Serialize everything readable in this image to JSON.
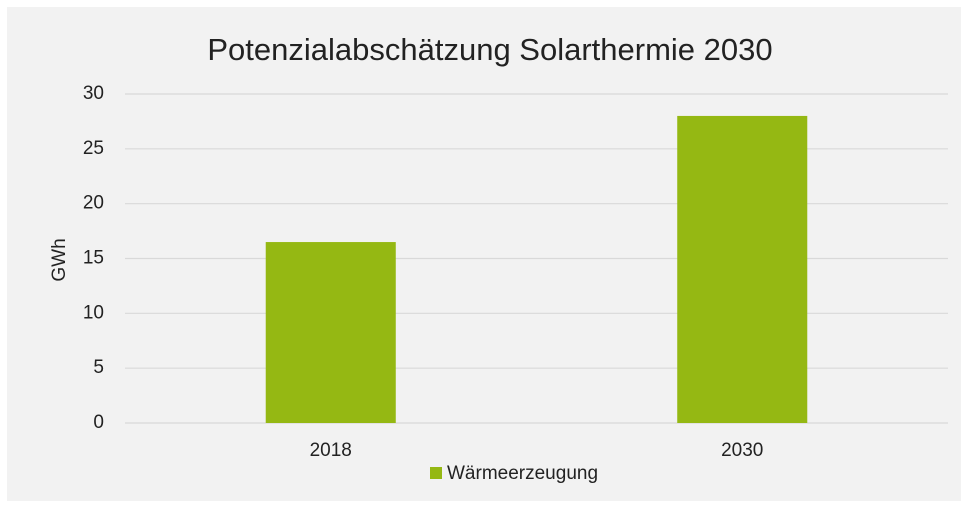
{
  "chart_data": {
    "type": "bar",
    "title": "Potenzialabschätzung Solarthermie 2030",
    "y_label": "GWh",
    "categories": [
      "2018",
      "2030"
    ],
    "series": [
      {
        "name": "Wärmeerzeugung",
        "color": "#95b813",
        "values": [
          16.5,
          28
        ]
      }
    ],
    "ylim": [
      0,
      30
    ],
    "yticks": [
      0,
      5,
      10,
      15,
      20,
      25,
      30
    ],
    "grid": true,
    "legend": "bottom"
  }
}
